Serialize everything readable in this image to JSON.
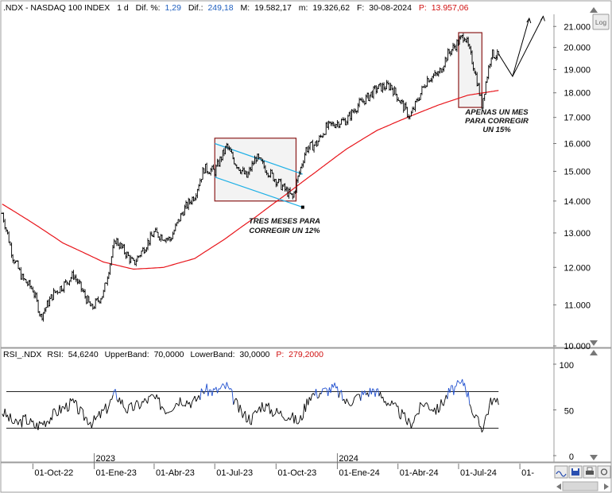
{
  "header": {
    "symbol": ".NDX - NASDAQ 100 INDEX",
    "period": "1 d",
    "diff_pct_label": "Dif. %:",
    "diff_pct": "1,29",
    "diff_label": "Dif.:",
    "diff": "249,18",
    "max_label": "M:",
    "max": "19.582,17",
    "min_label": "m:",
    "min": "19.326,62",
    "date_label": "F:",
    "date": "30-08-2024",
    "p_label": "P:",
    "p": "13.957,06",
    "log_button": "Log"
  },
  "rsi_header": {
    "name": "RSI_.NDX",
    "rsi_label": "RSI:",
    "rsi": "54,6240",
    "upper_label": "UpperBand:",
    "upper": "70,0000",
    "lower_label": "LowerBand:",
    "lower": "30,0000",
    "p_label": "P:",
    "p": "279,2000"
  },
  "annotations": {
    "box1_text_line1": "TRES MESES PARA",
    "box1_text_line2": "CORREGIR UN 12%",
    "box2_text_line1": "APENAS UN MES",
    "box2_text_line2": "PARA CORREGIR",
    "box2_text_line3": "UN 15%"
  },
  "colors": {
    "price": "#000000",
    "ma": "#e8151b",
    "channel": "#1fb0e6",
    "box": "#8b1a1a",
    "header_value_blue": "#2060c0",
    "header_value_red": "#d01010",
    "rsi_line": "#000000",
    "rsi_overbought": "#2050d0"
  },
  "chart_data": [
    {
      "type": "line",
      "title": ".NDX - NASDAQ 100 INDEX",
      "y_ticks": [
        "21.000",
        "20.000",
        "19.000",
        "18.000",
        "17.000",
        "16.000",
        "15.000",
        "14.000",
        "13.000",
        "12.000",
        "11.000",
        "10.000"
      ],
      "y_tick_values": [
        21000,
        20000,
        19000,
        18000,
        17000,
        16000,
        15000,
        14000,
        13000,
        12000,
        11000,
        10000
      ],
      "ylim": [
        10000,
        21600
      ],
      "y_scale": "log",
      "x_ticks": [
        "01-Oct-22",
        "01-Ene-23",
        "01-Abr-23",
        "01-Jul-23",
        "01-Oct-23",
        "01-Ene-24",
        "01-Abr-24",
        "01-Jul-24",
        "01-"
      ],
      "x_year_labels": [
        "2023",
        "2024"
      ],
      "xlim": [
        "2022-08-15",
        "2024-11-20"
      ],
      "series": [
        {
          "kind": "price",
          "x": [
            "2022-08-16",
            "2022-09-01",
            "2022-09-15",
            "2022-10-01",
            "2022-10-13",
            "2022-11-01",
            "2022-11-15",
            "2022-12-01",
            "2022-12-28",
            "2023-01-15",
            "2023-02-02",
            "2023-03-01",
            "2023-03-15",
            "2023-04-01",
            "2023-04-25",
            "2023-05-15",
            "2023-06-01",
            "2023-06-15",
            "2023-07-01",
            "2023-07-19",
            "2023-08-01",
            "2023-08-18",
            "2023-09-01",
            "2023-09-15",
            "2023-10-01",
            "2023-10-26",
            "2023-11-15",
            "2023-12-01",
            "2023-12-15",
            "2024-01-01",
            "2024-01-15",
            "2024-02-01",
            "2024-02-15",
            "2024-03-01",
            "2024-03-21",
            "2024-04-19",
            "2024-05-15",
            "2024-06-01",
            "2024-06-15",
            "2024-07-10",
            "2024-07-25",
            "2024-08-05",
            "2024-08-19",
            "2024-08-30"
          ],
          "values": [
            13600,
            12300,
            11700,
            11400,
            10700,
            11300,
            11500,
            11800,
            10900,
            11300,
            12800,
            12100,
            12500,
            13000,
            12800,
            13700,
            14200,
            15100,
            15000,
            15900,
            15300,
            14800,
            15500,
            15100,
            14700,
            14100,
            15800,
            16000,
            16600,
            16800,
            16900,
            17500,
            17800,
            18200,
            18300,
            17000,
            18600,
            18800,
            19700,
            20600,
            19000,
            17500,
            19700,
            19600
          ]
        },
        {
          "kind": "moving average",
          "x": [
            "2022-08-16",
            "2022-10-01",
            "2022-11-15",
            "2023-01-15",
            "2023-03-01",
            "2023-04-15",
            "2023-06-01",
            "2023-07-15",
            "2023-09-01",
            "2023-10-15",
            "2023-12-01",
            "2024-01-15",
            "2024-03-01",
            "2024-04-15",
            "2024-06-01",
            "2024-07-15",
            "2024-08-30"
          ],
          "values": [
            13900,
            13300,
            12700,
            12150,
            11950,
            12000,
            12250,
            12800,
            13500,
            14200,
            15000,
            15800,
            16500,
            17000,
            17500,
            17900,
            18100
          ]
        }
      ],
      "channel_upper": {
        "x": [
          "2023-07-01",
          "2023-11-10"
        ],
        "values": [
          16000,
          14900
        ]
      },
      "channel_lower": {
        "x": [
          "2023-07-01",
          "2023-11-10"
        ],
        "values": [
          14800,
          13800
        ]
      },
      "boxes": [
        {
          "x": [
            "2023-07-01",
            "2023-10-31"
          ],
          "y": [
            14000,
            16200
          ]
        },
        {
          "x": [
            "2024-07-01",
            "2024-08-05"
          ],
          "y": [
            17400,
            20700
          ]
        }
      ],
      "projection": {
        "x": [
          "2024-08-30",
          "2024-09-20",
          "2024-10-15",
          "2024-10-20",
          "2024-11-05"
        ],
        "values": [
          19700,
          18700,
          21400,
          19500,
          21500
        ]
      }
    },
    {
      "type": "line",
      "title": "RSI_.NDX",
      "y_ticks": [
        "100",
        "50",
        "0"
      ],
      "y_tick_values": [
        100,
        50,
        0
      ],
      "ylim": [
        0,
        100
      ],
      "bands": {
        "upper": 70,
        "lower": 30
      },
      "x": [
        "2022-08-16",
        "2022-09-05",
        "2022-09-20",
        "2022-10-05",
        "2022-10-20",
        "2022-11-10",
        "2022-11-30",
        "2022-12-15",
        "2022-12-30",
        "2023-01-20",
        "2023-02-02",
        "2023-02-20",
        "2023-03-10",
        "2023-03-30",
        "2023-04-20",
        "2023-05-10",
        "2023-05-30",
        "2023-06-15",
        "2023-07-01",
        "2023-07-19",
        "2023-08-10",
        "2023-08-25",
        "2023-09-10",
        "2023-09-28",
        "2023-10-20",
        "2023-11-05",
        "2023-11-20",
        "2023-12-10",
        "2023-12-28",
        "2024-01-15",
        "2024-02-05",
        "2024-02-25",
        "2024-03-15",
        "2024-04-05",
        "2024-04-19",
        "2024-05-10",
        "2024-05-30",
        "2024-06-18",
        "2024-07-05",
        "2024-07-10",
        "2024-07-25",
        "2024-08-05",
        "2024-08-20",
        "2024-08-30"
      ],
      "values": [
        48,
        34,
        40,
        32,
        38,
        50,
        58,
        44,
        36,
        52,
        68,
        50,
        56,
        64,
        50,
        62,
        58,
        72,
        70,
        76,
        46,
        40,
        56,
        48,
        44,
        36,
        66,
        70,
        74,
        58,
        66,
        72,
        60,
        46,
        34,
        58,
        50,
        70,
        78,
        80,
        42,
        30,
        62,
        55
      ]
    }
  ]
}
